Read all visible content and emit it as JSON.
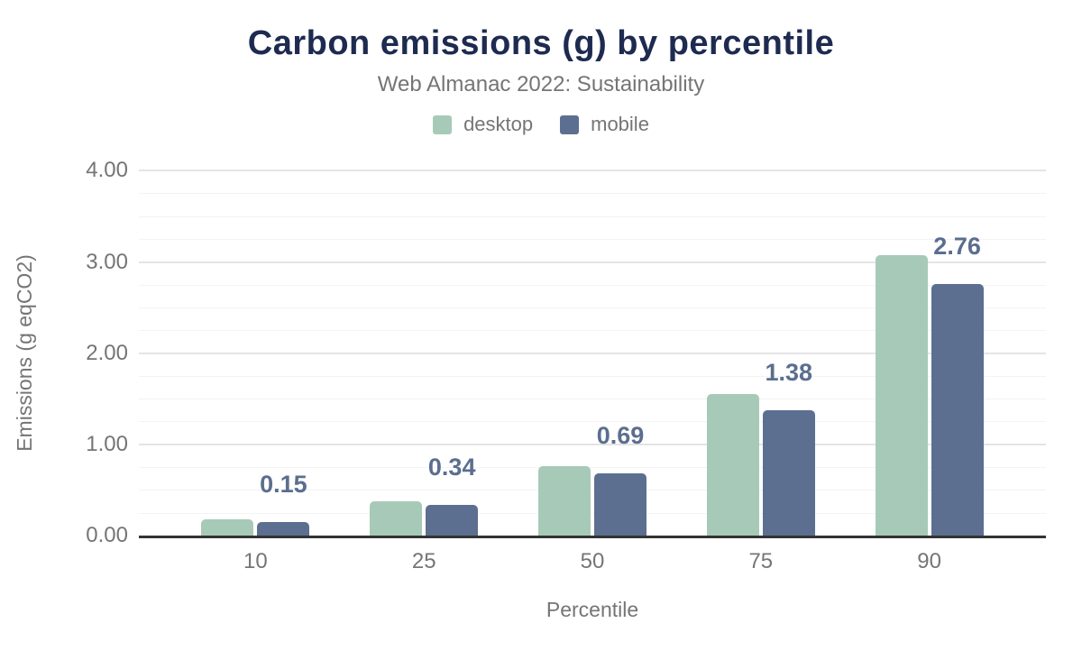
{
  "header": {
    "title": "Carbon emissions (g) by percentile",
    "subtitle": "Web Almanac 2022: Sustainability"
  },
  "chart_data": {
    "type": "bar",
    "title": "Carbon emissions (g) by percentile",
    "subtitle": "Web Almanac 2022: Sustainability",
    "xlabel": "Percentile",
    "ylabel": "Emissions (g eqCO2)",
    "categories": [
      "10",
      "25",
      "50",
      "75",
      "90"
    ],
    "series": [
      {
        "name": "desktop",
        "color": "#a7cab8",
        "values": [
          0.18,
          0.38,
          0.77,
          1.56,
          3.08
        ]
      },
      {
        "name": "mobile",
        "color": "#5c6f90",
        "values": [
          0.15,
          0.34,
          0.69,
          1.38,
          2.76
        ]
      }
    ],
    "data_labels": {
      "on_series": "mobile",
      "values": [
        "0.15",
        "0.34",
        "0.69",
        "1.38",
        "2.76"
      ],
      "color": "#5b6e8f"
    },
    "ylim": [
      0,
      4
    ],
    "yticks": [
      {
        "value": 0,
        "label": "0.00"
      },
      {
        "value": 1,
        "label": "1.00"
      },
      {
        "value": 2,
        "label": "2.00"
      },
      {
        "value": 3,
        "label": "3.00"
      },
      {
        "value": 4,
        "label": "4.00"
      }
    ],
    "grid": {
      "orientation": "horizontal",
      "minor_step": 0.25,
      "major_step": 1,
      "minor_color": "#f3f3f3",
      "major_color": "#e4e4e4"
    },
    "legend_position": "top",
    "axis_line_color": "#333333"
  },
  "colors": {
    "title_text": "#1e2b50",
    "muted_text": "#757575",
    "background": "#ffffff"
  }
}
